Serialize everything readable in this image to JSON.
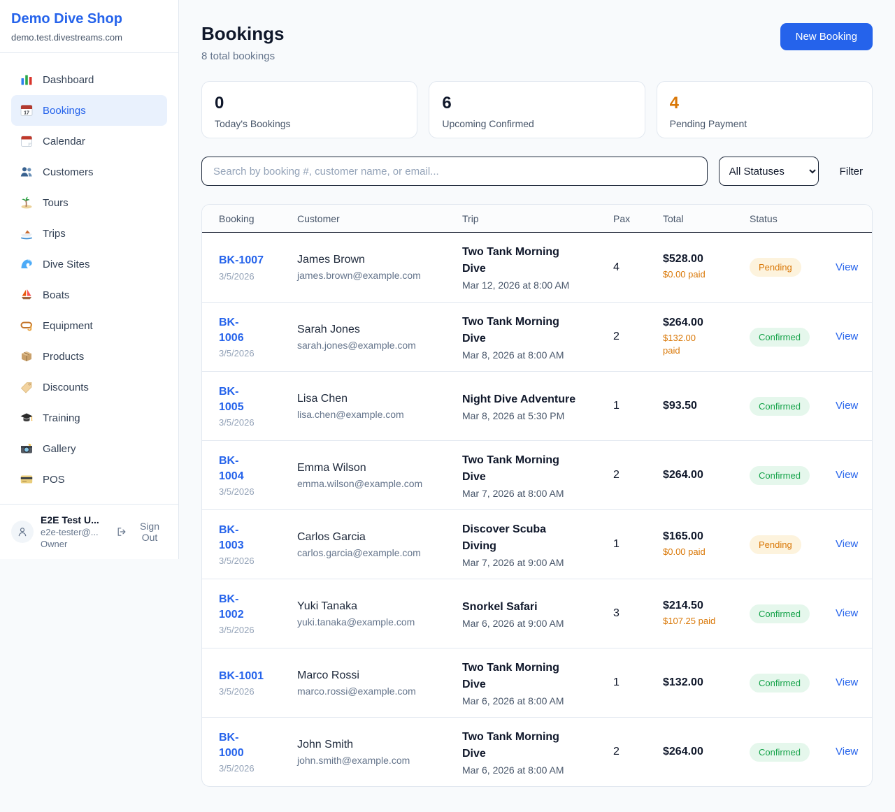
{
  "colors": {
    "accent_blue": "#2563eb",
    "pending_text": "#d97706",
    "pending_bg": "#fdf3dd",
    "confirmed_text": "#16a34a",
    "confirmed_bg": "#e5f7ec"
  },
  "sidebar": {
    "brand": {
      "name": "Demo Dive Shop",
      "domain": "demo.test.divestreams.com"
    },
    "items": [
      {
        "label": "Dashboard",
        "icon": "bar-chart-icon",
        "active": false
      },
      {
        "label": "Bookings",
        "icon": "bookings-calendar-icon",
        "active": true
      },
      {
        "label": "Calendar",
        "icon": "calendar-icon",
        "active": false
      },
      {
        "label": "Customers",
        "icon": "customers-icon",
        "active": false
      },
      {
        "label": "Tours",
        "icon": "island-icon",
        "active": false
      },
      {
        "label": "Trips",
        "icon": "speedboat-icon",
        "active": false
      },
      {
        "label": "Dive Sites",
        "icon": "wave-icon",
        "active": false
      },
      {
        "label": "Boats",
        "icon": "sailboat-icon",
        "active": false
      },
      {
        "label": "Equipment",
        "icon": "dive-mask-icon",
        "active": false
      },
      {
        "label": "Products",
        "icon": "package-icon",
        "active": false
      },
      {
        "label": "Discounts",
        "icon": "tag-icon",
        "active": false
      },
      {
        "label": "Training",
        "icon": "graduation-cap-icon",
        "active": false
      },
      {
        "label": "Gallery",
        "icon": "camera-icon",
        "active": false
      },
      {
        "label": "POS",
        "icon": "credit-card-icon",
        "active": false
      }
    ],
    "user": {
      "name": "E2E Test U...",
      "email": "e2e-tester@...",
      "role": "Owner",
      "sign_out_label": "Sign Out"
    }
  },
  "header": {
    "title": "Bookings",
    "subtitle": "8 total bookings",
    "new_booking_label": "New Booking"
  },
  "stats": [
    {
      "value": "0",
      "label": "Today's Bookings",
      "value_color": "#0f172a"
    },
    {
      "value": "6",
      "label": "Upcoming Confirmed",
      "value_color": "#0f172a"
    },
    {
      "value": "4",
      "label": "Pending Payment",
      "value_color": "#d97706"
    }
  ],
  "filters": {
    "search_placeholder": "Search by booking #, customer name, or email...",
    "status_selected": "All Statuses",
    "filter_label": "Filter"
  },
  "table": {
    "columns": [
      "Booking",
      "Customer",
      "Trip",
      "Pax",
      "Total",
      "Status"
    ],
    "view_label": "View",
    "rows": [
      {
        "id": "BK-1007",
        "id_wrapped": false,
        "date": "3/5/2026",
        "customer": "James Brown",
        "email": "james.brown@example.com",
        "trip": "Two Tank Morning Dive",
        "trip_datetime": "Mar 12, 2026 at 8:00 AM",
        "pax": "4",
        "total": "$528.00",
        "paid": "$0.00 paid",
        "paid_wrapped": false,
        "status": "Pending"
      },
      {
        "id": "BK-1006",
        "id_wrapped": true,
        "date": "3/5/2026",
        "customer": "Sarah Jones",
        "email": "sarah.jones@example.com",
        "trip": "Two Tank Morning Dive",
        "trip_datetime": "Mar 8, 2026 at 8:00 AM",
        "pax": "2",
        "total": "$264.00",
        "paid": "$132.00 paid",
        "paid_wrapped": true,
        "status": "Confirmed"
      },
      {
        "id": "BK-1005",
        "id_wrapped": true,
        "date": "3/5/2026",
        "customer": "Lisa Chen",
        "email": "lisa.chen@example.com",
        "trip": "Night Dive Adventure",
        "trip_datetime": "Mar 8, 2026 at 5:30 PM",
        "pax": "1",
        "total": "$93.50",
        "paid": "",
        "paid_wrapped": false,
        "status": "Confirmed"
      },
      {
        "id": "BK-1004",
        "id_wrapped": true,
        "date": "3/5/2026",
        "customer": "Emma Wilson",
        "email": "emma.wilson@example.com",
        "trip": "Two Tank Morning Dive",
        "trip_datetime": "Mar 7, 2026 at 8:00 AM",
        "pax": "2",
        "total": "$264.00",
        "paid": "",
        "paid_wrapped": false,
        "status": "Confirmed"
      },
      {
        "id": "BK-1003",
        "id_wrapped": true,
        "date": "3/5/2026",
        "customer": "Carlos Garcia",
        "email": "carlos.garcia@example.com",
        "trip": "Discover Scuba Diving",
        "trip_datetime": "Mar 7, 2026 at 9:00 AM",
        "pax": "1",
        "total": "$165.00",
        "paid": "$0.00 paid",
        "paid_wrapped": false,
        "status": "Pending"
      },
      {
        "id": "BK-1002",
        "id_wrapped": true,
        "date": "3/5/2026",
        "customer": "Yuki Tanaka",
        "email": "yuki.tanaka@example.com",
        "trip": "Snorkel Safari",
        "trip_datetime": "Mar 6, 2026 at 9:00 AM",
        "pax": "3",
        "total": "$214.50",
        "paid": "$107.25 paid",
        "paid_wrapped": false,
        "status": "Confirmed"
      },
      {
        "id": "BK-1001",
        "id_wrapped": false,
        "date": "3/5/2026",
        "customer": "Marco Rossi",
        "email": "marco.rossi@example.com",
        "trip": "Two Tank Morning Dive",
        "trip_datetime": "Mar 6, 2026 at 8:00 AM",
        "pax": "1",
        "total": "$132.00",
        "paid": "",
        "paid_wrapped": false,
        "status": "Confirmed"
      },
      {
        "id": "BK-1000",
        "id_wrapped": true,
        "date": "3/5/2026",
        "customer": "John Smith",
        "email": "john.smith@example.com",
        "trip": "Two Tank Morning Dive",
        "trip_datetime": "Mar 6, 2026 at 8:00 AM",
        "pax": "2",
        "total": "$264.00",
        "paid": "",
        "paid_wrapped": false,
        "status": "Confirmed"
      }
    ]
  }
}
